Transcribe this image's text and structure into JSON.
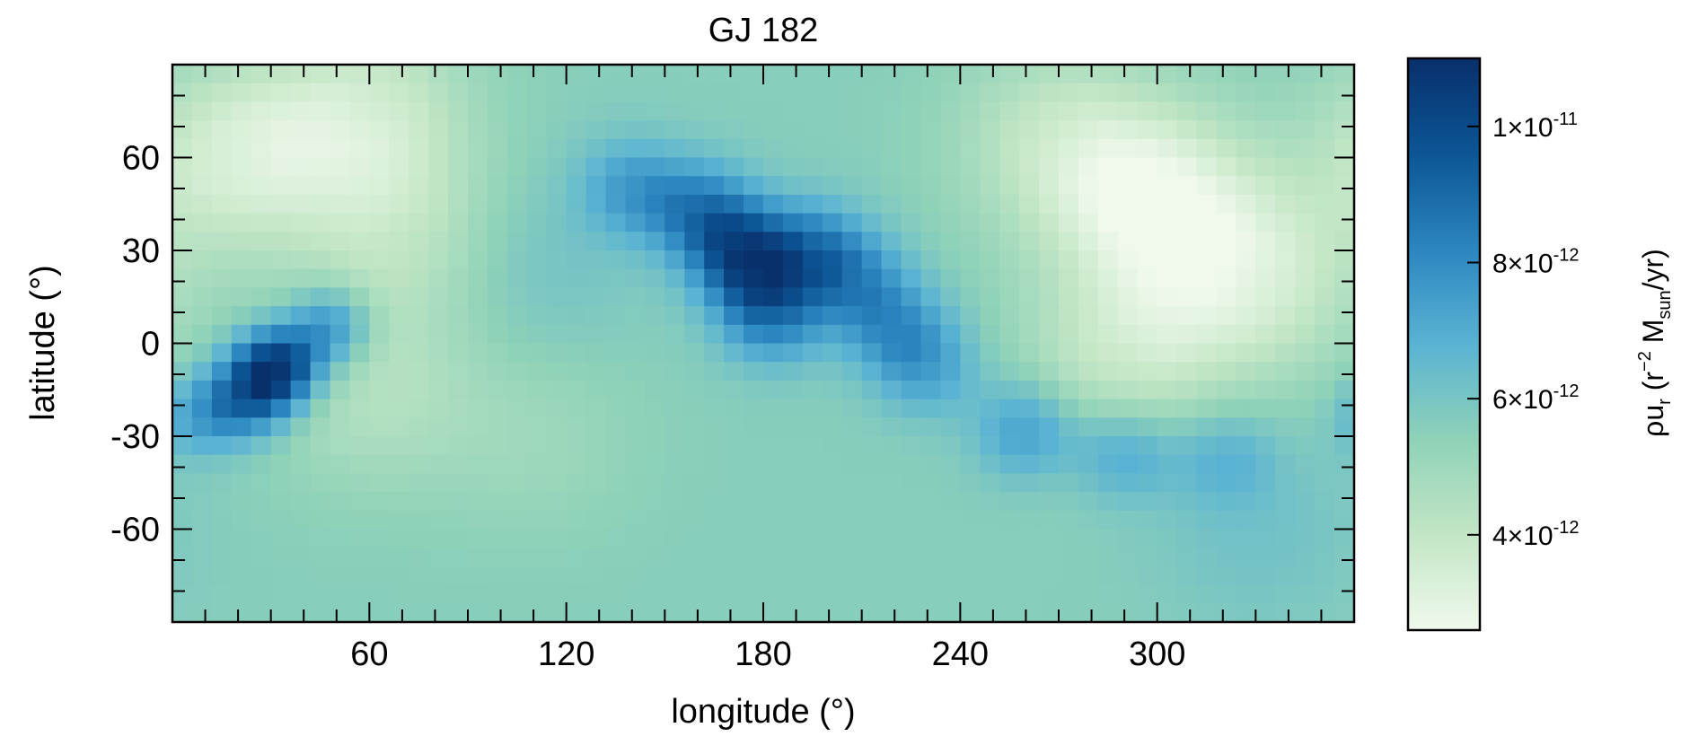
{
  "chart_data": {
    "type": "heatmap",
    "title": "GJ 182",
    "xlabel": "longitude (°)",
    "ylabel": "latitude (°)",
    "xlim": [
      0,
      360
    ],
    "ylim": [
      -90,
      90
    ],
    "x_ticks": [
      60,
      120,
      180,
      240,
      300
    ],
    "x_tick_labels": [
      "60",
      "120",
      "180",
      "240",
      "300"
    ],
    "y_ticks": [
      60,
      30,
      0,
      -30,
      -60
    ],
    "y_tick_labels": [
      "60",
      "30",
      "0",
      "-30",
      "-60"
    ],
    "colorbar": {
      "label": "ρu_r (r^-2 M_sun/yr)",
      "range": [
        2.6e-12,
        1.1e-11
      ],
      "ticks": [
        1e-11,
        8e-12,
        6e-12,
        4e-12
      ],
      "tick_labels": [
        {
          "mantissa": "1",
          "exp": "-11"
        },
        {
          "mantissa": "8",
          "exp": "-12"
        },
        {
          "mantissa": "6",
          "exp": "-12"
        },
        {
          "mantissa": "4",
          "exp": "-12"
        }
      ],
      "colormap": "GnBu",
      "colors_low_to_high": [
        "#f0f9ec",
        "#c2e6c5",
        "#8fd2b8",
        "#5ab3d3",
        "#2b86c0",
        "#0c5595",
        "#08306b"
      ]
    },
    "background_level": 5.6e-12,
    "features": [
      {
        "feature": "peak",
        "lon": 32,
        "lat": -8,
        "value": 1.08e-11
      },
      {
        "feature": "peak",
        "lon": 22,
        "lat": -18,
        "value": 8.6e-12
      },
      {
        "feature": "peak",
        "lon": 48,
        "lat": 5,
        "value": 8.4e-12
      },
      {
        "feature": "peak",
        "lon": 8,
        "lat": -24,
        "value": 7.2e-12
      },
      {
        "feature": "arc",
        "lon": 140,
        "lat": 50,
        "value": 7.4e-12
      },
      {
        "feature": "arc",
        "lon": 160,
        "lat": 43,
        "value": 8e-12
      },
      {
        "feature": "arc",
        "lon": 172,
        "lat": 32,
        "value": 8.3e-12
      },
      {
        "feature": "arc",
        "lon": 178,
        "lat": 22,
        "value": 8.2e-12
      },
      {
        "feature": "arc",
        "lon": 183,
        "lat": 8,
        "value": 7.8e-12
      },
      {
        "feature": "arc",
        "lon": 195,
        "lat": 30,
        "value": 8e-12
      },
      {
        "feature": "arc",
        "lon": 208,
        "lat": 20,
        "value": 7.6e-12
      },
      {
        "feature": "arc",
        "lon": 220,
        "lat": 5,
        "value": 7.5e-12
      },
      {
        "feature": "arc",
        "lon": 230,
        "lat": -8,
        "value": 7.2e-12
      },
      {
        "feature": "arc",
        "lon": 260,
        "lat": -28,
        "value": 7.6e-12
      },
      {
        "feature": "arc",
        "lon": 290,
        "lat": -35,
        "value": 7.4e-12
      },
      {
        "feature": "arc",
        "lon": 320,
        "lat": -36,
        "value": 6.8e-12
      },
      {
        "feature": "low",
        "lon": 20,
        "lat": 60,
        "value": 3.4e-12
      },
      {
        "feature": "low",
        "lon": 60,
        "lat": 75,
        "value": 3.8e-12
      },
      {
        "feature": "low",
        "lon": 300,
        "lat": 45,
        "value": 3e-12
      },
      {
        "feature": "low",
        "lon": 330,
        "lat": 20,
        "value": 3.6e-12
      },
      {
        "feature": "low",
        "lon": 290,
        "lat": -5,
        "value": 3.9e-12
      },
      {
        "feature": "low",
        "lon": 270,
        "lat": 65,
        "value": 4e-12
      },
      {
        "feature": "low",
        "lon": 70,
        "lat": 35,
        "value": 4.2e-12
      },
      {
        "feature": "low",
        "lon": 60,
        "lat": -15,
        "value": 4.4e-12
      },
      {
        "feature": "moderate",
        "lon": 110,
        "lat": 25,
        "value": 6.2e-12
      },
      {
        "feature": "moderate",
        "lon": 110,
        "lat": -30,
        "value": 5e-12
      },
      {
        "feature": "moderate",
        "lon": 330,
        "lat": -60,
        "value": 6.2e-12
      }
    ]
  }
}
